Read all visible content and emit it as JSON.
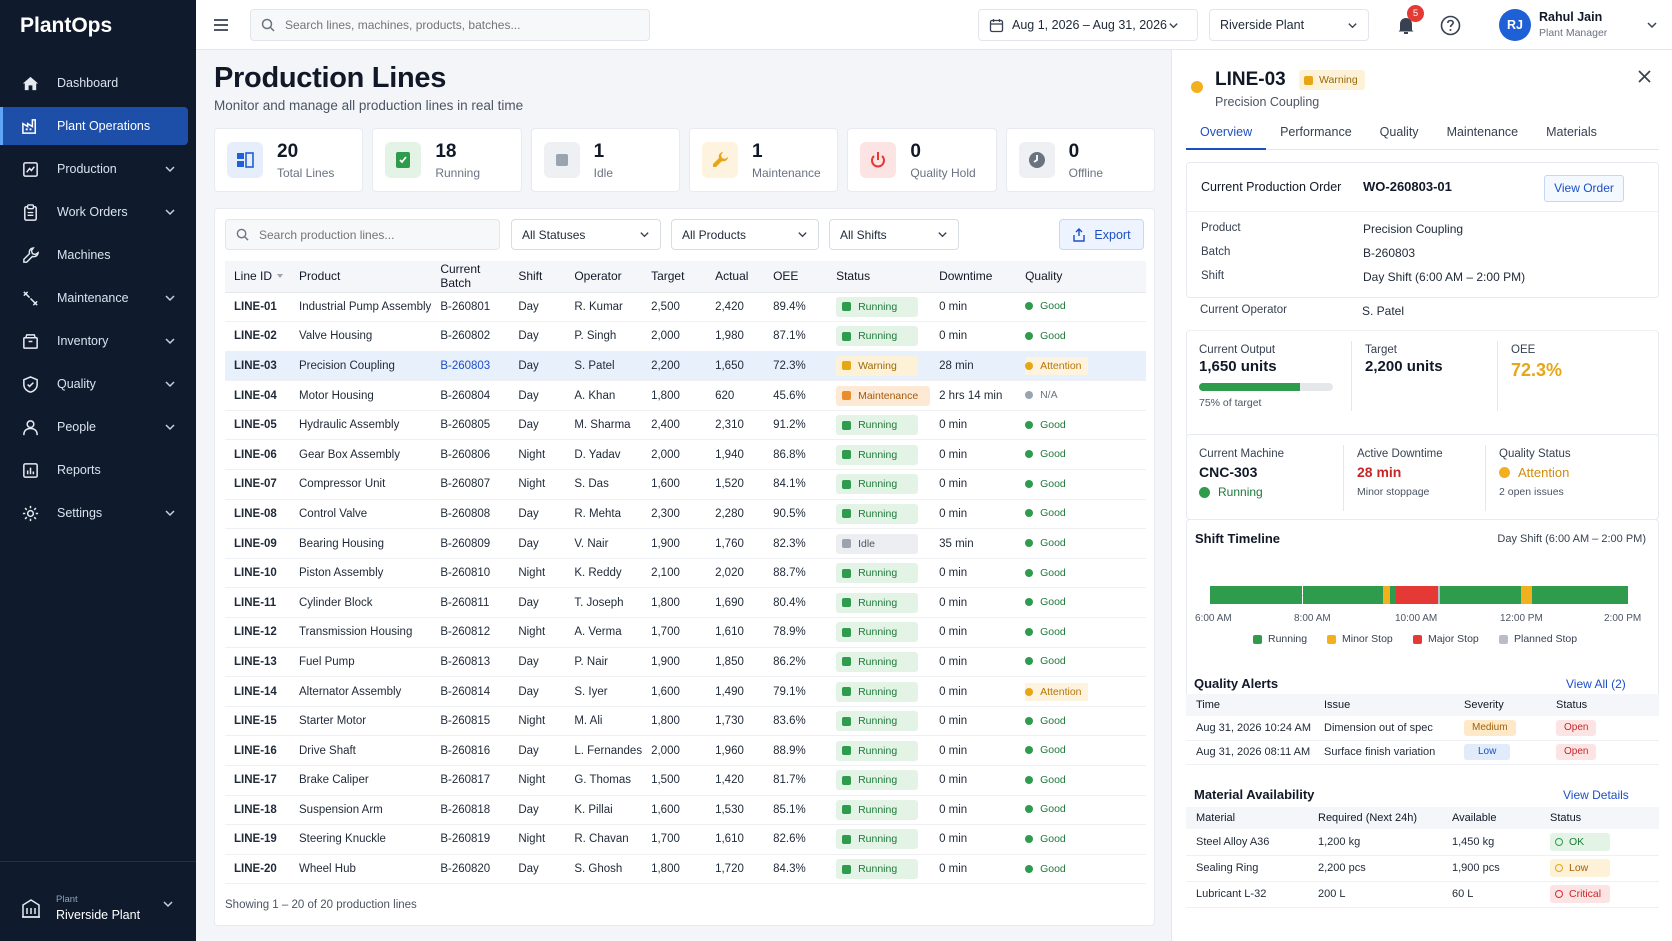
{
  "app": {
    "name": "PlantOps"
  },
  "sidebar": {
    "items": [
      {
        "label": "Dashboard",
        "icon": "home-icon"
      },
      {
        "label": "Plant Operations",
        "icon": "factory-icon"
      },
      {
        "label": "Production",
        "icon": "production-icon"
      },
      {
        "label": "Work Orders",
        "icon": "clipboard-icon"
      },
      {
        "label": "Machines",
        "icon": "wrench-icon"
      },
      {
        "label": "Maintenance",
        "icon": "tools-icon"
      },
      {
        "label": "Inventory",
        "icon": "box-icon"
      },
      {
        "label": "Quality",
        "icon": "shield-icon"
      },
      {
        "label": "People",
        "icon": "user-icon"
      },
      {
        "label": "Reports",
        "icon": "report-icon"
      },
      {
        "label": "Settings",
        "icon": "gear-icon"
      }
    ],
    "plant": {
      "label": "Plant",
      "value": "Riverside Plant"
    }
  },
  "topbar": {
    "search_placeholder": "Search lines, machines, products, batches...",
    "date_range": "Aug 1, 2026 – Aug 31, 2026",
    "plant": "Riverside Plant",
    "notifications": "5",
    "user": {
      "initials": "RJ",
      "name": "Rahul Jain",
      "role": "Plant Manager"
    }
  },
  "page": {
    "title": "Production Lines",
    "subtitle": "Monitor and manage all production lines in real time"
  },
  "stats": [
    {
      "value": "20",
      "label": "Total Lines",
      "color": "#1e60d6"
    },
    {
      "value": "18",
      "label": "Running",
      "color": "#2e9b4d"
    },
    {
      "value": "1",
      "label": "Idle",
      "color": "#9aa3b0"
    },
    {
      "value": "1",
      "label": "Maintenance",
      "color": "#e6a616"
    },
    {
      "value": "0",
      "label": "Quality Hold",
      "color": "#e53935"
    },
    {
      "value": "0",
      "label": "Offline",
      "color": "#6b7280"
    }
  ],
  "filters": {
    "search_placeholder": "Search production lines...",
    "status": "All Statuses",
    "product": "All Products",
    "shift": "All Shifts",
    "export": "Export"
  },
  "table": {
    "columns": [
      "Line ID",
      "Product",
      "Current Batch",
      "Shift",
      "Operator",
      "Target",
      "Actual",
      "OEE",
      "Status",
      "Downtime",
      "Quality"
    ],
    "rows": [
      [
        "LINE-01",
        "Industrial Pump Assembly",
        "B-260801",
        "Day",
        "R. Kumar",
        "2,500",
        "2,420",
        "89.4%",
        "Running",
        "0 min",
        "Good"
      ],
      [
        "LINE-02",
        "Valve Housing",
        "B-260802",
        "Day",
        "P. Singh",
        "2,000",
        "1,980",
        "87.1%",
        "Running",
        "0 min",
        "Good"
      ],
      [
        "LINE-03",
        "Precision Coupling",
        "B-260803",
        "Day",
        "S. Patel",
        "2,200",
        "1,650",
        "72.3%",
        "Warning",
        "28 min",
        "Attention"
      ],
      [
        "LINE-04",
        "Motor Housing",
        "B-260804",
        "Day",
        "A. Khan",
        "1,800",
        "620",
        "45.6%",
        "Maintenance",
        "2 hrs 14 min",
        "N/A"
      ],
      [
        "LINE-05",
        "Hydraulic Assembly",
        "B-260805",
        "Day",
        "M. Sharma",
        "2,400",
        "2,310",
        "91.2%",
        "Running",
        "0 min",
        "Good"
      ],
      [
        "LINE-06",
        "Gear Box Assembly",
        "B-260806",
        "Night",
        "D. Yadav",
        "2,000",
        "1,940",
        "86.8%",
        "Running",
        "0 min",
        "Good"
      ],
      [
        "LINE-07",
        "Compressor Unit",
        "B-260807",
        "Night",
        "S. Das",
        "1,600",
        "1,520",
        "84.1%",
        "Running",
        "0 min",
        "Good"
      ],
      [
        "LINE-08",
        "Control Valve",
        "B-260808",
        "Day",
        "R. Mehta",
        "2,300",
        "2,280",
        "90.5%",
        "Running",
        "0 min",
        "Good"
      ],
      [
        "LINE-09",
        "Bearing Housing",
        "B-260809",
        "Day",
        "V. Nair",
        "1,900",
        "1,760",
        "82.3%",
        "Idle",
        "35 min",
        "Good"
      ],
      [
        "LINE-10",
        "Piston Assembly",
        "B-260810",
        "Night",
        "K. Reddy",
        "2,100",
        "2,020",
        "88.7%",
        "Running",
        "0 min",
        "Good"
      ],
      [
        "LINE-11",
        "Cylinder Block",
        "B-260811",
        "Day",
        "T. Joseph",
        "1,800",
        "1,690",
        "80.4%",
        "Running",
        "0 min",
        "Good"
      ],
      [
        "LINE-12",
        "Transmission Housing",
        "B-260812",
        "Night",
        "A. Verma",
        "1,700",
        "1,610",
        "78.9%",
        "Running",
        "0 min",
        "Good"
      ],
      [
        "LINE-13",
        "Fuel Pump",
        "B-260813",
        "Day",
        "P. Nair",
        "1,900",
        "1,850",
        "86.2%",
        "Running",
        "0 min",
        "Good"
      ],
      [
        "LINE-14",
        "Alternator Assembly",
        "B-260814",
        "Day",
        "S. Iyer",
        "1,600",
        "1,490",
        "79.1%",
        "Running",
        "0 min",
        "Attention"
      ],
      [
        "LINE-15",
        "Starter Motor",
        "B-260815",
        "Night",
        "M. Ali",
        "1,800",
        "1,730",
        "83.6%",
        "Running",
        "0 min",
        "Good"
      ],
      [
        "LINE-16",
        "Drive Shaft",
        "B-260816",
        "Day",
        "L. Fernandes",
        "2,000",
        "1,960",
        "88.9%",
        "Running",
        "0 min",
        "Good"
      ],
      [
        "LINE-17",
        "Brake Caliper",
        "B-260817",
        "Night",
        "G. Thomas",
        "1,500",
        "1,420",
        "81.7%",
        "Running",
        "0 min",
        "Good"
      ],
      [
        "LINE-18",
        "Suspension Arm",
        "B-260818",
        "Day",
        "K. Pillai",
        "1,600",
        "1,530",
        "85.1%",
        "Running",
        "0 min",
        "Good"
      ],
      [
        "LINE-19",
        "Steering Knuckle",
        "B-260819",
        "Night",
        "R. Chavan",
        "1,700",
        "1,610",
        "82.6%",
        "Running",
        "0 min",
        "Good"
      ],
      [
        "LINE-20",
        "Wheel Hub",
        "B-260820",
        "Day",
        "S. Ghosh",
        "1,800",
        "1,720",
        "84.3%",
        "Running",
        "0 min",
        "Good"
      ]
    ],
    "selected_row": 2,
    "footer": "Showing 1 – 20 of 20 production lines"
  },
  "panel": {
    "line_id": "LINE-03",
    "status": "Warning",
    "product_name": "Precision Coupling",
    "tabs": [
      "Overview",
      "Performance",
      "Quality",
      "Maintenance",
      "Materials"
    ],
    "order": {
      "heading": "Current Production Order",
      "id": "WO-260803-01",
      "view_label": "View Order",
      "fields": [
        {
          "label": "Product",
          "value": "Precision Coupling"
        },
        {
          "label": "Batch",
          "value": "B-260803"
        },
        {
          "label": "Shift",
          "value": "Day Shift (6:00 AM – 2:00 PM)"
        },
        {
          "label": "Current Operator",
          "value": "S. Patel"
        }
      ]
    },
    "output": {
      "current_label": "Current Output",
      "current_value": "1,650 units",
      "progress": 0.75,
      "progress_text": "75% of target",
      "target_label": "Target",
      "target_value": "2,200 units",
      "oee_label": "OEE",
      "oee_value": "72.3%"
    },
    "machine": {
      "machine_label": "Current Machine",
      "machine_value": "CNC-303",
      "machine_status": "Running",
      "downtime_label": "Active Downtime",
      "downtime_value": "28 min",
      "downtime_note": "Minor stoppage",
      "quality_label": "Quality Status",
      "quality_value": "Attention",
      "quality_note": "2 open issues"
    },
    "timeline": {
      "title": "Shift Timeline",
      "range": "Day Shift (6:00 AM – 2:00 PM)",
      "ticks": [
        "6:00 AM",
        "8:00 AM",
        "10:00 AM",
        "12:00 PM",
        "2:00 PM"
      ],
      "segments": [
        {
          "state": "Running",
          "start": 0.0,
          "end": 0.22
        },
        {
          "state": "Running",
          "start": 0.222,
          "end": 0.415
        },
        {
          "state": "Minor Stop",
          "start": 0.415,
          "end": 0.43
        },
        {
          "state": "Running",
          "start": 0.43,
          "end": 0.445
        },
        {
          "state": "Major Stop",
          "start": 0.445,
          "end": 0.545
        },
        {
          "state": "Planned Stop",
          "start": 0.545,
          "end": 0.55
        },
        {
          "state": "Running",
          "start": 0.55,
          "end": 0.745
        },
        {
          "state": "Minor Stop",
          "start": 0.745,
          "end": 0.77
        },
        {
          "state": "Running",
          "start": 0.77,
          "end": 1.0
        }
      ],
      "legend": [
        {
          "label": "Running",
          "color": "#2e9b4d"
        },
        {
          "label": "Minor Stop",
          "color": "#f2b01e"
        },
        {
          "label": "Major Stop",
          "color": "#e53935"
        },
        {
          "label": "Planned Stop",
          "color": "#b8bec8"
        }
      ]
    },
    "alerts": {
      "title": "Quality Alerts",
      "link": "View All (2)",
      "columns": [
        "Time",
        "Issue",
        "Severity",
        "Status"
      ],
      "rows": [
        [
          "Aug 31, 2026 10:24 AM",
          "Dimension out of spec",
          "Medium",
          "Open"
        ],
        [
          "Aug 31, 2026 08:11 AM",
          "Surface finish variation",
          "Low",
          "Open"
        ]
      ]
    },
    "materials": {
      "title": "Material Availability",
      "link": "View Details",
      "columns": [
        "Material",
        "Required (Next 24h)",
        "Available",
        "Status"
      ],
      "rows": [
        [
          "Steel Alloy A36",
          "1,200 kg",
          "1,450 kg",
          "OK"
        ],
        [
          "Sealing Ring",
          "2,200 pcs",
          "1,900 pcs",
          "Low"
        ],
        [
          "Lubricant L-32",
          "200 L",
          "60 L",
          "Critical"
        ]
      ]
    }
  }
}
